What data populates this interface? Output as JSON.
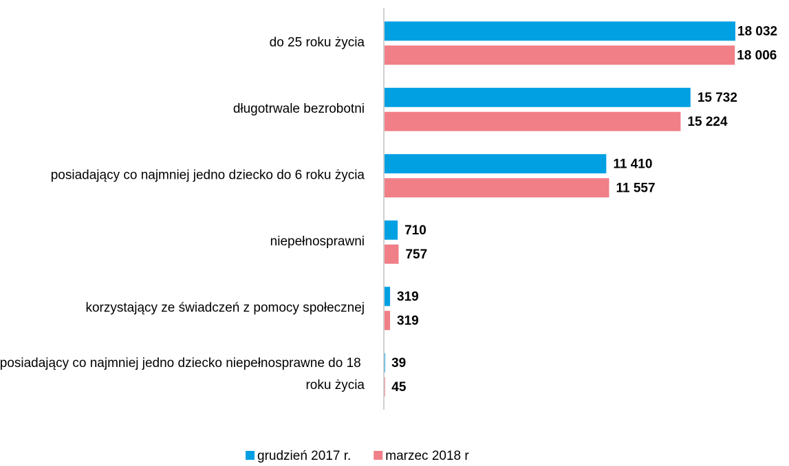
{
  "chart_data": {
    "type": "hbar",
    "categories": [
      "do 25 roku życia",
      "długotrwale bezrobotni",
      "posiadający co najmniej jedno dziecko do 6 roku życia",
      "niepełnosprawni",
      "korzystający ze świadczeń z pomocy społecznej",
      "posiadający co najmniej jedno dziecko niepełnosprawne do 18 roku życia"
    ],
    "series": [
      {
        "name": "grudzień 2017 r.",
        "color": "#00a0e3",
        "values": [
          18032,
          15732,
          11410,
          710,
          319,
          39
        ],
        "value_labels": [
          "18 032",
          "15 732",
          "11 410",
          "710",
          "319",
          "39"
        ]
      },
      {
        "name": "marzec 2018 r",
        "color": "#f07f88",
        "values": [
          18006,
          15224,
          11557,
          757,
          319,
          45
        ],
        "value_labels": [
          "18 006",
          "15 224",
          "11 557",
          "757",
          "319",
          "45"
        ]
      }
    ],
    "legend": "bottom"
  }
}
